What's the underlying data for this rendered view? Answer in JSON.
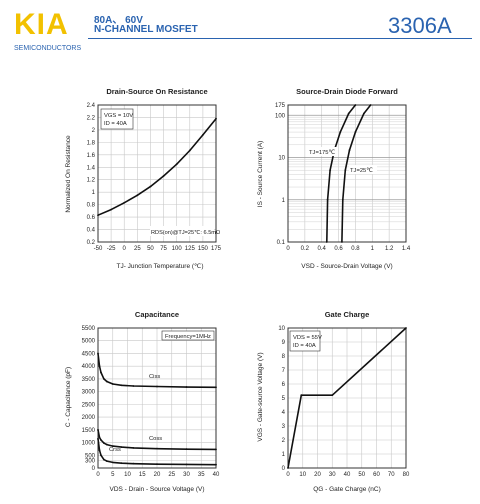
{
  "header": {
    "logo": "KIA",
    "logo_sub": "SEMICONDUCTORS",
    "spec_line1": "80A、 60V",
    "spec_line2": "N-CHANNEL MOSFET",
    "part_number": "3306A"
  },
  "colors": {
    "brand_yellow": "#f2c100",
    "brand_blue": "#2a63b0",
    "curve": "#111111"
  },
  "chart_data": [
    {
      "type": "line",
      "title": "Drain-Source On Resistance",
      "xlabel": "TJ- Junction Temperature (℃)",
      "ylabel": "Normalized On Resistance",
      "xlim": [
        -50,
        175
      ],
      "ylim": [
        0.2,
        2.4
      ],
      "xticks": [
        -50,
        -25,
        0,
        25,
        50,
        75,
        100,
        125,
        150,
        175
      ],
      "yticks": [
        0.2,
        0.4,
        0.6,
        0.8,
        1.0,
        1.2,
        1.4,
        1.6,
        1.8,
        2.0,
        2.2,
        2.4
      ],
      "annotations": [
        "VGS = 10V",
        "ID = 40A",
        "RDS(on)@TJ=25℃: 6.5mΩ"
      ],
      "series": [
        {
          "x": [
            -50,
            -25,
            0,
            25,
            50,
            75,
            100,
            125,
            150,
            175
          ],
          "y": [
            0.63,
            0.72,
            0.83,
            0.95,
            1.09,
            1.26,
            1.45,
            1.67,
            1.92,
            2.18
          ]
        }
      ]
    },
    {
      "type": "line",
      "title": "Source-Drain Diode Forward",
      "xlabel": "VSD - Source-Drain Voltage (V)",
      "ylabel": "IS - Source Current (A)",
      "yscale": "log",
      "xlim": [
        0,
        1.4
      ],
      "ylim": [
        0.1,
        175
      ],
      "xticks": [
        0.0,
        0.2,
        0.4,
        0.6,
        0.8,
        1.0,
        1.2,
        1.4
      ],
      "yticks": [
        0.1,
        1,
        10,
        100,
        175
      ],
      "series": [
        {
          "name": "TJ=175℃",
          "x": [
            0.46,
            0.47,
            0.5,
            0.55,
            0.62,
            0.72,
            0.8
          ],
          "y": [
            0.1,
            1,
            5,
            15,
            40,
            110,
            175
          ]
        },
        {
          "name": "TJ=25℃",
          "x": [
            0.64,
            0.65,
            0.68,
            0.73,
            0.8,
            0.9,
            0.98
          ],
          "y": [
            0.1,
            1,
            5,
            15,
            40,
            110,
            175
          ]
        }
      ]
    },
    {
      "type": "line",
      "title": "Capacitance",
      "xlabel": "VDS - Drain - Source Voltage (V)",
      "ylabel": "C - Capacitance (pF)",
      "annotation": "Frequency=1MHz",
      "xlim": [
        0,
        40
      ],
      "ylim": [
        0,
        5500
      ],
      "xticks": [
        0,
        5,
        10,
        15,
        20,
        25,
        30,
        35,
        40
      ],
      "yticks": [
        0,
        300,
        500,
        1000,
        1500,
        2000,
        2500,
        3000,
        3500,
        4000,
        4500,
        5000,
        5500
      ],
      "series": [
        {
          "name": "Ciss",
          "x": [
            0,
            0.5,
            1,
            2,
            3,
            5,
            8,
            12,
            20,
            30,
            40
          ],
          "y": [
            4500,
            4000,
            3750,
            3500,
            3400,
            3300,
            3250,
            3220,
            3200,
            3180,
            3170
          ]
        },
        {
          "name": "Coss",
          "x": [
            0,
            0.5,
            1,
            2,
            3,
            5,
            8,
            12,
            20,
            30,
            40
          ],
          "y": [
            1500,
            1200,
            1100,
            980,
            920,
            860,
            820,
            790,
            760,
            740,
            730
          ]
        },
        {
          "name": "Crss",
          "x": [
            0,
            0.5,
            1,
            2,
            3,
            5,
            8,
            12,
            20,
            30,
            40
          ],
          "y": [
            1150,
            700,
            500,
            330,
            270,
            220,
            190,
            170,
            150,
            140,
            130
          ]
        }
      ]
    },
    {
      "type": "line",
      "title": "Gate Charge",
      "xlabel": "QG - Gate Charge (nC)",
      "ylabel": "VGS - Gate-source Voltage (V)",
      "annotations": [
        "VDS = 55V",
        "ID = 40A"
      ],
      "xlim": [
        0,
        80
      ],
      "ylim": [
        0,
        10
      ],
      "xticks": [
        0,
        10,
        20,
        30,
        40,
        50,
        60,
        70,
        80
      ],
      "yticks": [
        0,
        1,
        2,
        3,
        4,
        5,
        6,
        7,
        8,
        9,
        10
      ],
      "series": [
        {
          "x": [
            0,
            9,
            30,
            80
          ],
          "y": [
            0,
            5.2,
            5.2,
            10
          ]
        }
      ]
    }
  ]
}
